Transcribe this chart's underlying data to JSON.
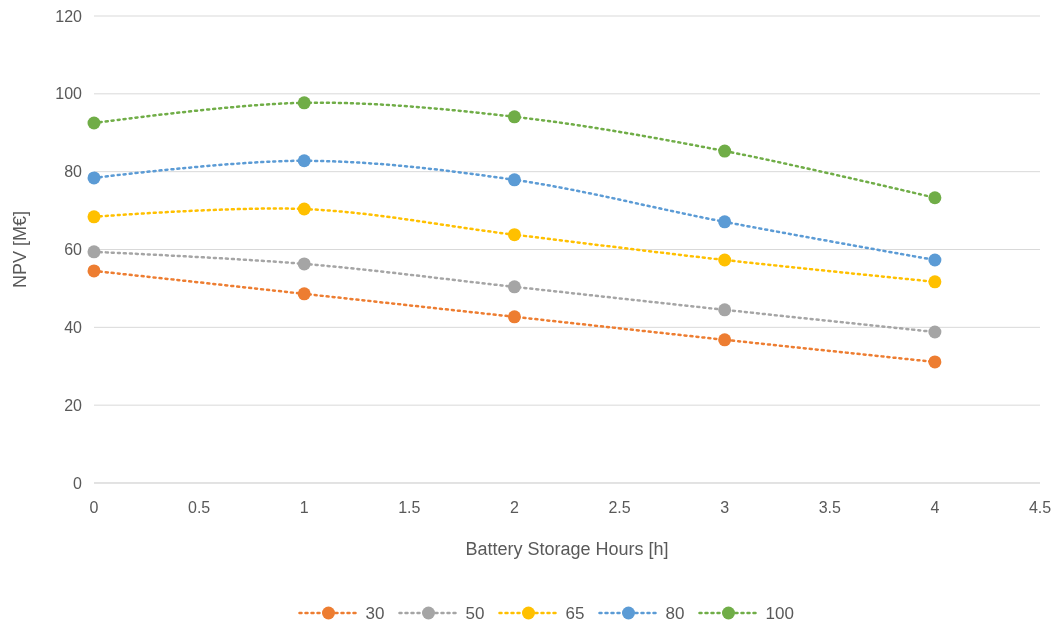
{
  "chart_data": {
    "type": "line",
    "xlabel": "Battery Storage Hours [h]",
    "ylabel": "NPV [M€]",
    "x": [
      0,
      1,
      2,
      3,
      4
    ],
    "series": [
      {
        "name": "30",
        "color": "#ed7d31",
        "values": [
          54.5,
          48.6,
          42.7,
          36.8,
          31.1
        ]
      },
      {
        "name": "50",
        "color": "#a5a5a5",
        "values": [
          59.4,
          56.3,
          50.4,
          44.5,
          38.8
        ]
      },
      {
        "name": "65",
        "color": "#ffc000",
        "values": [
          68.4,
          70.4,
          63.8,
          57.3,
          51.7
        ]
      },
      {
        "name": "80",
        "color": "#5b9bd5",
        "values": [
          78.4,
          82.8,
          77.9,
          67.1,
          57.3
        ]
      },
      {
        "name": "100",
        "color": "#70ad47",
        "values": [
          92.5,
          97.7,
          94.1,
          85.3,
          73.3
        ]
      }
    ],
    "xlim": [
      0,
      4.5
    ],
    "xticks": [
      0,
      0.5,
      1,
      1.5,
      2,
      2.5,
      3,
      3.5,
      4,
      4.5
    ],
    "ylim": [
      0,
      120
    ],
    "yticks": [
      0,
      20,
      40,
      60,
      80,
      100,
      120
    ],
    "grid": "y",
    "legend": "bottom",
    "marker": "circle",
    "line_style": "dotted"
  }
}
